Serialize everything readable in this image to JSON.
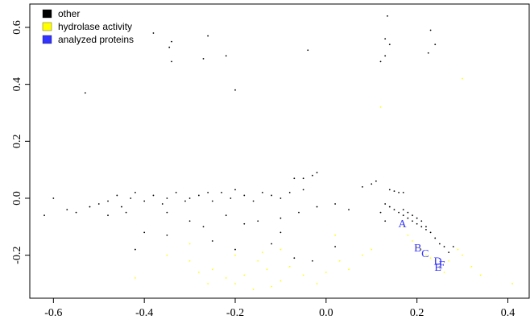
{
  "chart_data": {
    "type": "scatter",
    "legend": "top-left",
    "xlim": [
      -0.652,
      0.447
    ],
    "ylim": [
      -0.351,
      0.682
    ],
    "xticks": [
      -0.6,
      -0.4,
      -0.2,
      {
        "value": 0,
        "label": "0.0"
      },
      0.2,
      0.4
    ],
    "yticks": [
      -0.2,
      {
        "value": 0,
        "label": "0.0"
      },
      0.2,
      0.4,
      0.6
    ],
    "series": [
      {
        "name": "other",
        "color": "#000000",
        "x": [
          0.135,
          0.23,
          0.13,
          0.14,
          0.24,
          0.13,
          0.12,
          0.225,
          -0.38,
          -0.34,
          -0.345,
          -0.26,
          -0.22,
          -0.27,
          -0.34,
          -0.04,
          -0.53,
          -0.2,
          -0.62,
          -0.6,
          -0.57,
          -0.55,
          -0.52,
          -0.5,
          -0.48,
          -0.46,
          -0.45,
          -0.43,
          -0.42,
          -0.4,
          -0.38,
          -0.36,
          -0.35,
          -0.33,
          -0.31,
          -0.3,
          -0.28,
          -0.26,
          -0.25,
          -0.23,
          -0.21,
          -0.2,
          -0.18,
          -0.16,
          -0.14,
          -0.12,
          -0.1,
          -0.08,
          -0.05,
          -0.07,
          -0.05,
          -0.03,
          -0.02,
          -0.48,
          -0.44,
          -0.35,
          -0.3,
          -0.4,
          -0.35,
          -0.27,
          -0.22,
          -0.18,
          -0.15,
          -0.1,
          -0.06,
          -0.02,
          0.02,
          0.05,
          -0.25,
          -0.2,
          -0.12,
          -0.07,
          -0.03,
          0.02,
          -0.42,
          -0.1,
          0.08,
          0.1,
          0.11,
          0.14,
          0.15,
          0.16,
          0.17,
          0.13,
          0.14,
          0.15,
          0.16,
          0.17,
          0.18,
          0.19,
          0.2,
          0.21,
          0.22,
          0.23,
          0.17,
          0.18,
          0.19,
          0.2,
          0.21,
          0.22,
          0.24,
          0.25,
          0.26,
          0.27,
          0.28,
          0.12,
          0.13
        ],
        "values": [
          0.64,
          0.59,
          0.56,
          0.54,
          0.54,
          0.5,
          0.48,
          0.51,
          0.58,
          0.55,
          0.53,
          0.57,
          0.5,
          0.49,
          0.48,
          0.52,
          0.37,
          0.38,
          -0.06,
          0,
          -0.04,
          -0.05,
          -0.03,
          -0.02,
          -0.01,
          0.01,
          -0.03,
          0,
          0.02,
          -0.01,
          0.01,
          -0.02,
          0,
          0.02,
          -0.01,
          0,
          0.01,
          0.02,
          -0.01,
          0.02,
          0,
          0.03,
          0.01,
          -0.01,
          0.02,
          0.01,
          0,
          0.02,
          0.03,
          0.07,
          0.07,
          0.08,
          0.09,
          -0.06,
          -0.05,
          -0.05,
          -0.08,
          -0.12,
          -0.13,
          -0.1,
          -0.06,
          -0.09,
          -0.08,
          -0.07,
          -0.05,
          -0.03,
          -0.02,
          -0.04,
          -0.15,
          -0.18,
          -0.16,
          -0.21,
          -0.22,
          -0.17,
          -0.18,
          -0.12,
          0.04,
          0.05,
          0.06,
          0.03,
          0.025,
          0.02,
          0.02,
          -0.02,
          -0.03,
          -0.04,
          -0.05,
          -0.06,
          -0.07,
          -0.08,
          -0.09,
          -0.1,
          -0.11,
          -0.12,
          -0.04,
          -0.05,
          -0.06,
          -0.07,
          -0.08,
          -0.1,
          -0.14,
          -0.16,
          -0.17,
          -0.19,
          -0.17,
          -0.05,
          -0.08
        ]
      },
      {
        "name": "hydrolase activity",
        "color": "#ffff00",
        "x": [
          0.12,
          0.3,
          0.17,
          0.18,
          0.19,
          0.2,
          0.21,
          0.22,
          0.23,
          0.24,
          0.25,
          0.27,
          0.29,
          0.3,
          0.32,
          0.34,
          0.41,
          0.26,
          -0.42,
          -0.35,
          -0.3,
          -0.28,
          -0.25,
          -0.22,
          -0.2,
          -0.18,
          -0.15,
          -0.13,
          -0.12,
          -0.1,
          -0.08,
          -0.05,
          -0.02,
          0.0,
          0.03,
          0.05,
          0.08,
          -0.3,
          -0.2,
          -0.1,
          0.02,
          0.1,
          -0.26,
          -0.16,
          -0.14
        ],
        "values": [
          0.32,
          0.42,
          -0.1,
          -0.13,
          -0.15,
          -0.17,
          -0.18,
          -0.2,
          -0.21,
          -0.22,
          -0.24,
          -0.22,
          -0.18,
          -0.2,
          -0.24,
          -0.27,
          -0.3,
          -0.26,
          -0.28,
          -0.2,
          -0.22,
          -0.26,
          -0.25,
          -0.28,
          -0.3,
          -0.27,
          -0.22,
          -0.25,
          -0.31,
          -0.29,
          -0.24,
          -0.27,
          -0.3,
          -0.26,
          -0.22,
          -0.25,
          -0.2,
          -0.16,
          -0.2,
          -0.18,
          -0.13,
          -0.18,
          -0.3,
          -0.32,
          -0.19
        ]
      },
      {
        "name": "analyzed proteins",
        "color": "#3333ff",
        "x": [
          0.168,
          0.202,
          0.218,
          0.246,
          0.246,
          0.255
        ],
        "values": [
          -0.088,
          -0.172,
          -0.192,
          -0.22,
          -0.24,
          -0.232
        ],
        "labels": [
          "A",
          "B",
          "C",
          "D",
          "E",
          "F"
        ]
      }
    ]
  }
}
